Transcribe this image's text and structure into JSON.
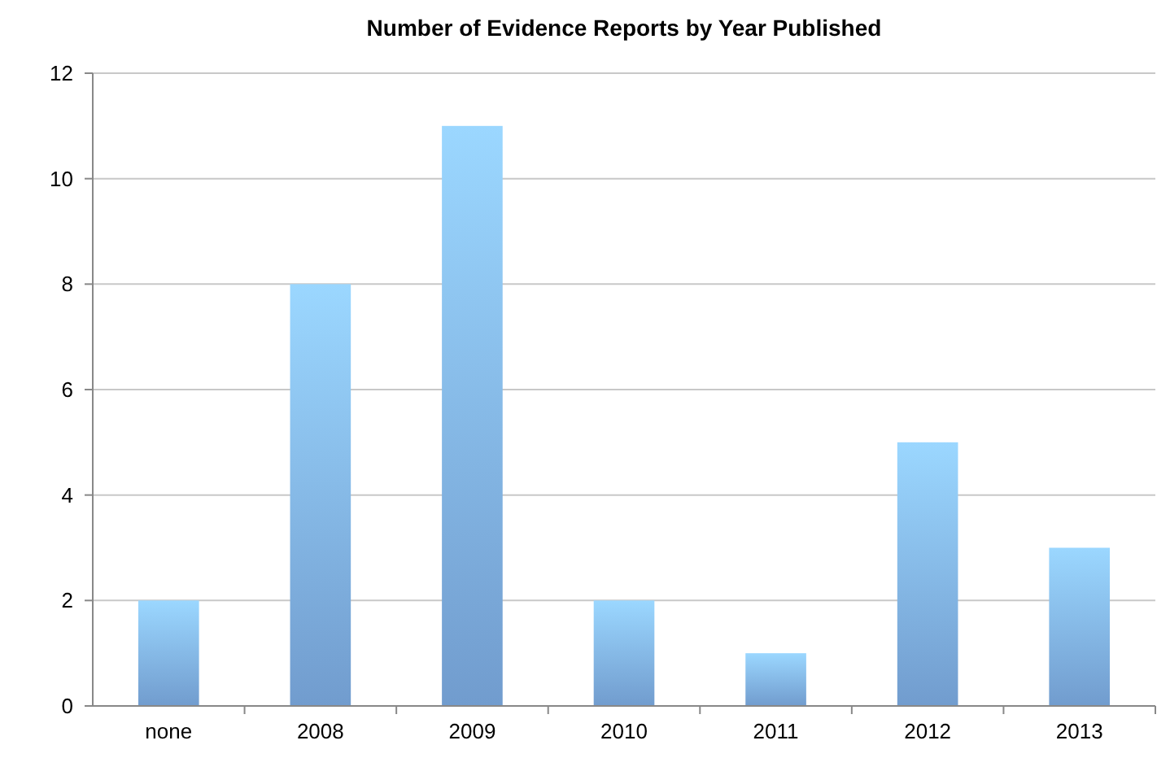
{
  "chart_data": {
    "type": "bar",
    "title": "Number of Evidence Reports by Year Published",
    "categories": [
      "none",
      "2008",
      "2009",
      "2010",
      "2011",
      "2012",
      "2013"
    ],
    "values": [
      2,
      8,
      11,
      2,
      1,
      5,
      3
    ],
    "color": "#82b4ee",
    "ylim": [
      0,
      12
    ],
    "yticks": [
      0,
      2,
      4,
      6,
      8,
      10,
      12
    ],
    "grid": "y"
  }
}
